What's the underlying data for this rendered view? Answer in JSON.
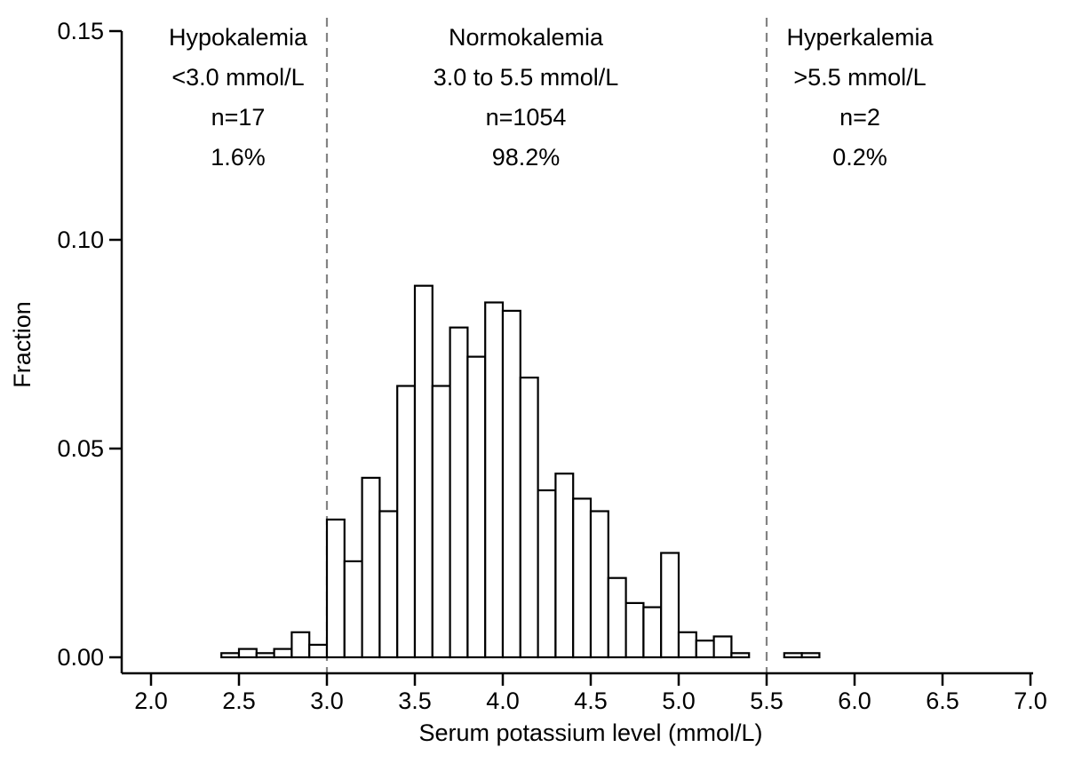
{
  "chart_data": {
    "type": "bar",
    "title": "",
    "xlabel": "Serum potassium level (mmol/L)",
    "ylabel": "Fraction",
    "xlim": [
      2.0,
      7.0
    ],
    "ylim": [
      0.0,
      0.15
    ],
    "x_ticks": [
      2.0,
      2.5,
      3.0,
      3.5,
      4.0,
      4.5,
      5.0,
      5.5,
      6.0,
      6.5,
      7.0
    ],
    "x_tick_labels": [
      "2.0",
      "2.5",
      "3.0",
      "3.5",
      "4.0",
      "4.5",
      "5.0",
      "5.5",
      "6.0",
      "6.5",
      "7.0"
    ],
    "y_ticks": [
      0.0,
      0.05,
      0.1,
      0.15
    ],
    "y_tick_labels": [
      "0.00",
      "0.05",
      "0.10",
      "0.15"
    ],
    "bin_width": 0.1,
    "bins_start": [
      2.4,
      2.5,
      2.6,
      2.7,
      2.8,
      2.9,
      3.0,
      3.1,
      3.2,
      3.3,
      3.4,
      3.5,
      3.6,
      3.7,
      3.8,
      3.9,
      4.0,
      4.1,
      4.2,
      4.3,
      4.4,
      4.5,
      4.6,
      4.7,
      4.8,
      4.9,
      5.0,
      5.1,
      5.2,
      5.3,
      5.6,
      5.7
    ],
    "values": [
      0.001,
      0.002,
      0.001,
      0.002,
      0.006,
      0.003,
      0.033,
      0.023,
      0.043,
      0.035,
      0.065,
      0.089,
      0.065,
      0.079,
      0.072,
      0.085,
      0.083,
      0.067,
      0.04,
      0.044,
      0.038,
      0.035,
      0.019,
      0.013,
      0.012,
      0.025,
      0.006,
      0.004,
      0.005,
      0.001,
      0.001,
      0.001
    ],
    "reference_lines": [
      3.0,
      5.5
    ],
    "grid": false,
    "legend": "none",
    "bar_fill": "#ffffff",
    "bar_stroke": "#000000",
    "axis_color": "#000000",
    "ref_line_color": "#838383"
  },
  "annotations": {
    "hypokalemia": {
      "title": "Hypokalemia",
      "range": "<3.0 mmol/L",
      "n": "n=17",
      "pct": "1.6%"
    },
    "normokalemia": {
      "title": "Normokalemia",
      "range": "3.0 to 5.5 mmol/L",
      "n": "n=1054",
      "pct": "98.2%"
    },
    "hyperkalemia": {
      "title": "Hyperkalemia",
      "range": ">5.5 mmol/L",
      "n": "n=2",
      "pct": "0.2%"
    }
  }
}
